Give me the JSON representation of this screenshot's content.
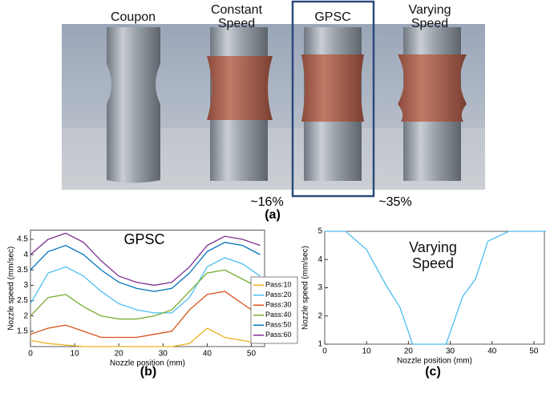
{
  "photo": {
    "labels": [
      "Coupon",
      "Constant Speed",
      "GPSC",
      "Varying Speed"
    ],
    "left_note": "~16%",
    "right_note": "~35%",
    "caption": "(a)"
  },
  "chart_data": [
    {
      "type": "line",
      "title": "GPSC",
      "caption": "(b)",
      "x_label": "Nozzle position (mm)",
      "y_label": "Nozzle speed (mm/sec)",
      "x": [
        0,
        4,
        8,
        12,
        16,
        20,
        24,
        28,
        32,
        36,
        40,
        44,
        48,
        52
      ],
      "xlim": [
        0,
        53
      ],
      "xticks": [
        0,
        10,
        20,
        30,
        40,
        50
      ],
      "ylim": [
        1,
        4.8
      ],
      "yticks": [
        1.5,
        2,
        2.5,
        3,
        3.5,
        4,
        4.5
      ],
      "legend": "right",
      "series": [
        {
          "name": "Pass:10",
          "color": "#EDB120",
          "values": [
            1.2,
            1.1,
            1.05,
            1.0,
            1.0,
            1.0,
            1.0,
            1.0,
            1.0,
            1.1,
            1.6,
            1.3,
            1.2,
            1.1
          ]
        },
        {
          "name": "Pass:20",
          "color": "#4DBEEE",
          "values": [
            2.4,
            3.4,
            3.6,
            3.3,
            2.8,
            2.4,
            2.2,
            2.1,
            2.1,
            2.6,
            3.6,
            3.9,
            3.7,
            3.3
          ]
        },
        {
          "name": "Pass:30",
          "color": "#D95319",
          "values": [
            1.4,
            1.6,
            1.7,
            1.5,
            1.3,
            1.3,
            1.3,
            1.4,
            1.5,
            2.2,
            2.7,
            2.8,
            2.4,
            2.0
          ]
        },
        {
          "name": "Pass:40",
          "color": "#77AC30",
          "values": [
            2.0,
            2.6,
            2.7,
            2.3,
            2.0,
            1.9,
            1.9,
            2.0,
            2.2,
            2.8,
            3.4,
            3.5,
            3.2,
            2.9
          ]
        },
        {
          "name": "Pass:50",
          "color": "#0072BD",
          "values": [
            3.5,
            4.1,
            4.3,
            4.0,
            3.5,
            3.1,
            2.9,
            2.8,
            2.9,
            3.4,
            4.1,
            4.4,
            4.3,
            4.0
          ]
        },
        {
          "name": "Pass:60",
          "color": "#7E2F8E",
          "values": [
            4.0,
            4.5,
            4.7,
            4.4,
            3.8,
            3.3,
            3.1,
            3.0,
            3.1,
            3.6,
            4.3,
            4.6,
            4.5,
            4.3
          ]
        }
      ]
    },
    {
      "type": "line",
      "title": "Varying Speed",
      "caption": "(c)",
      "x_label": "Nozzle position (mm)",
      "y_label": "Nozzle speed (mm/sec)",
      "x": [
        0,
        5,
        10,
        15,
        18,
        21,
        25,
        29,
        33,
        36,
        39,
        44,
        53
      ],
      "xlim": [
        0,
        52.5
      ],
      "xticks": [
        0,
        10,
        20,
        30,
        40,
        50
      ],
      "ylim": [
        1,
        5
      ],
      "yticks": [
        1,
        2,
        3,
        4,
        5
      ],
      "series": [
        {
          "color": "#4DBEEE",
          "values": [
            5,
            5,
            4.35,
            3,
            2.3,
            1,
            1,
            1,
            2.7,
            3.3,
            4.65,
            5,
            5
          ]
        }
      ]
    }
  ]
}
